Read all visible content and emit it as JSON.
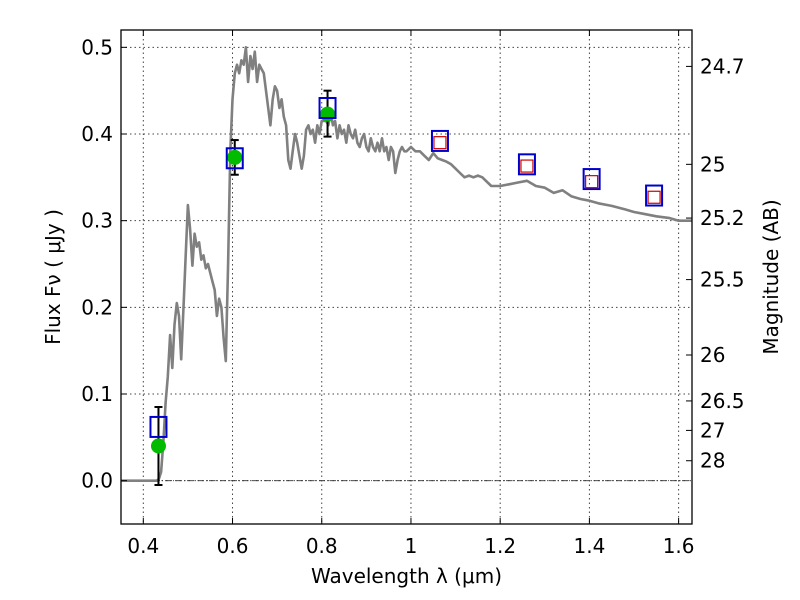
{
  "chart_data": {
    "type": "line",
    "xlabel": "Wavelength  λ (μm)",
    "ylabel": "Flux  Fν  ( μJy )",
    "y2label": "Magnitude (AB)",
    "xlim": [
      0.35,
      1.63
    ],
    "ylim": [
      -0.05,
      0.52
    ],
    "grid": true,
    "x_ticks": [
      0.4,
      0.6,
      0.8,
      1.0,
      1.2,
      1.4,
      1.6
    ],
    "x_tick_labels": [
      "0.4",
      "0.6",
      "0.8",
      "1",
      "1.2",
      "1.4",
      "1.6"
    ],
    "y_ticks": [
      0.0,
      0.1,
      0.2,
      0.3,
      0.4,
      0.5
    ],
    "y_tick_labels": [
      "0.0",
      "0.1",
      "0.2",
      "0.3",
      "0.4",
      "0.5"
    ],
    "mag_ticks": [
      {
        "label": "24.7",
        "flux": 0.478
      },
      {
        "label": "25",
        "flux": 0.365
      },
      {
        "label": "25.2",
        "flux": 0.303
      },
      {
        "label": "25.5",
        "flux": 0.232
      },
      {
        "label": "26",
        "flux": 0.145
      },
      {
        "label": "26.5",
        "flux": 0.092
      },
      {
        "label": "27",
        "flux": 0.058
      },
      {
        "label": "28",
        "flux": 0.023
      }
    ],
    "series": [
      {
        "style": "sed-model-line",
        "color": "#808080",
        "points": [
          [
            0.35,
            0.0
          ],
          [
            0.43,
            0.0
          ],
          [
            0.435,
            0.002
          ],
          [
            0.44,
            0.01
          ],
          [
            0.445,
            0.045
          ],
          [
            0.45,
            0.09
          ],
          [
            0.455,
            0.12
          ],
          [
            0.46,
            0.168
          ],
          [
            0.465,
            0.13
          ],
          [
            0.47,
            0.18
          ],
          [
            0.475,
            0.205
          ],
          [
            0.48,
            0.19
          ],
          [
            0.485,
            0.14
          ],
          [
            0.49,
            0.2
          ],
          [
            0.495,
            0.26
          ],
          [
            0.5,
            0.318
          ],
          [
            0.505,
            0.29
          ],
          [
            0.51,
            0.248
          ],
          [
            0.515,
            0.285
          ],
          [
            0.52,
            0.27
          ],
          [
            0.525,
            0.275
          ],
          [
            0.53,
            0.255
          ],
          [
            0.535,
            0.26
          ],
          [
            0.54,
            0.245
          ],
          [
            0.545,
            0.25
          ],
          [
            0.55,
            0.24
          ],
          [
            0.555,
            0.23
          ],
          [
            0.56,
            0.22
          ],
          [
            0.565,
            0.19
          ],
          [
            0.57,
            0.21
          ],
          [
            0.575,
            0.2
          ],
          [
            0.58,
            0.165
          ],
          [
            0.585,
            0.138
          ],
          [
            0.59,
            0.25
          ],
          [
            0.595,
            0.38
          ],
          [
            0.6,
            0.44
          ],
          [
            0.605,
            0.47
          ],
          [
            0.61,
            0.48
          ],
          [
            0.615,
            0.47
          ],
          [
            0.62,
            0.485
          ],
          [
            0.625,
            0.48
          ],
          [
            0.63,
            0.5
          ],
          [
            0.635,
            0.46
          ],
          [
            0.64,
            0.49
          ],
          [
            0.645,
            0.475
          ],
          [
            0.65,
            0.495
          ],
          [
            0.655,
            0.46
          ],
          [
            0.66,
            0.48
          ],
          [
            0.665,
            0.475
          ],
          [
            0.67,
            0.47
          ],
          [
            0.675,
            0.45
          ],
          [
            0.68,
            0.43
          ],
          [
            0.685,
            0.41
          ],
          [
            0.69,
            0.44
          ],
          [
            0.695,
            0.455
          ],
          [
            0.7,
            0.45
          ],
          [
            0.705,
            0.43
          ],
          [
            0.71,
            0.44
          ],
          [
            0.715,
            0.42
          ],
          [
            0.72,
            0.41
          ],
          [
            0.725,
            0.37
          ],
          [
            0.73,
            0.36
          ],
          [
            0.735,
            0.38
          ],
          [
            0.74,
            0.4
          ],
          [
            0.745,
            0.39
          ],
          [
            0.75,
            0.375
          ],
          [
            0.755,
            0.36
          ],
          [
            0.76,
            0.375
          ],
          [
            0.765,
            0.405
          ],
          [
            0.77,
            0.41
          ],
          [
            0.775,
            0.4
          ],
          [
            0.78,
            0.405
          ],
          [
            0.785,
            0.39
          ],
          [
            0.79,
            0.41
          ],
          [
            0.795,
            0.4
          ],
          [
            0.8,
            0.415
          ],
          [
            0.81,
            0.415
          ],
          [
            0.815,
            0.41
          ],
          [
            0.82,
            0.425
          ],
          [
            0.825,
            0.41
          ],
          [
            0.83,
            0.415
          ],
          [
            0.835,
            0.395
          ],
          [
            0.84,
            0.41
          ],
          [
            0.845,
            0.4
          ],
          [
            0.85,
            0.405
          ],
          [
            0.855,
            0.39
          ],
          [
            0.86,
            0.41
          ],
          [
            0.865,
            0.4
          ],
          [
            0.87,
            0.395
          ],
          [
            0.875,
            0.405
          ],
          [
            0.88,
            0.39
          ],
          [
            0.885,
            0.385
          ],
          [
            0.89,
            0.395
          ],
          [
            0.895,
            0.4
          ],
          [
            0.9,
            0.385
          ],
          [
            0.905,
            0.38
          ],
          [
            0.91,
            0.395
          ],
          [
            0.915,
            0.385
          ],
          [
            0.92,
            0.38
          ],
          [
            0.925,
            0.39
          ],
          [
            0.93,
            0.38
          ],
          [
            0.935,
            0.395
          ],
          [
            0.94,
            0.38
          ],
          [
            0.945,
            0.385
          ],
          [
            0.95,
            0.37
          ],
          [
            0.955,
            0.385
          ],
          [
            0.96,
            0.38
          ],
          [
            0.965,
            0.355
          ],
          [
            0.97,
            0.37
          ],
          [
            0.975,
            0.38
          ],
          [
            0.98,
            0.385
          ],
          [
            0.985,
            0.38
          ],
          [
            0.99,
            0.38
          ],
          [
            1.0,
            0.385
          ],
          [
            1.01,
            0.38
          ],
          [
            1.02,
            0.38
          ],
          [
            1.03,
            0.375
          ],
          [
            1.04,
            0.37
          ],
          [
            1.05,
            0.378
          ],
          [
            1.06,
            0.372
          ],
          [
            1.07,
            0.37
          ],
          [
            1.08,
            0.368
          ],
          [
            1.09,
            0.365
          ],
          [
            1.1,
            0.36
          ],
          [
            1.11,
            0.355
          ],
          [
            1.12,
            0.35
          ],
          [
            1.13,
            0.352
          ],
          [
            1.14,
            0.35
          ],
          [
            1.15,
            0.352
          ],
          [
            1.16,
            0.35
          ],
          [
            1.17,
            0.345
          ],
          [
            1.18,
            0.34
          ],
          [
            1.2,
            0.34
          ],
          [
            1.22,
            0.342
          ],
          [
            1.24,
            0.344
          ],
          [
            1.26,
            0.346
          ],
          [
            1.28,
            0.34
          ],
          [
            1.3,
            0.338
          ],
          [
            1.32,
            0.332
          ],
          [
            1.34,
            0.335
          ],
          [
            1.36,
            0.328
          ],
          [
            1.38,
            0.325
          ],
          [
            1.4,
            0.323
          ],
          [
            1.42,
            0.32
          ],
          [
            1.45,
            0.317
          ],
          [
            1.48,
            0.313
          ],
          [
            1.5,
            0.31
          ],
          [
            1.52,
            0.308
          ],
          [
            1.55,
            0.305
          ],
          [
            1.58,
            0.303
          ],
          [
            1.6,
            0.3
          ],
          [
            1.63,
            0.3
          ]
        ]
      },
      {
        "style": "error-bar",
        "color": "#000000",
        "points": [
          {
            "x": 0.434,
            "low": -0.005,
            "high": 0.085
          },
          {
            "x": 0.605,
            "low": 0.353,
            "high": 0.393
          },
          {
            "x": 0.813,
            "low": 0.397,
            "high": 0.45
          }
        ]
      },
      {
        "style": "green-circle",
        "color": "#00bb00",
        "points": [
          [
            0.434,
            0.04
          ],
          [
            0.605,
            0.373
          ],
          [
            0.813,
            0.423
          ]
        ]
      },
      {
        "style": "blue-square",
        "color": "#0000cc",
        "points": [
          [
            0.434,
            0.062
          ],
          [
            0.605,
            0.372
          ],
          [
            0.813,
            0.43
          ],
          [
            1.065,
            0.392
          ],
          [
            1.26,
            0.365
          ],
          [
            1.405,
            0.348
          ],
          [
            1.545,
            0.329
          ]
        ]
      },
      {
        "style": "red-square",
        "color": "#cc0000",
        "points": [
          [
            1.065,
            0.39
          ],
          [
            1.26,
            0.363
          ],
          [
            1.405,
            0.345
          ],
          [
            1.545,
            0.327
          ]
        ]
      }
    ]
  }
}
